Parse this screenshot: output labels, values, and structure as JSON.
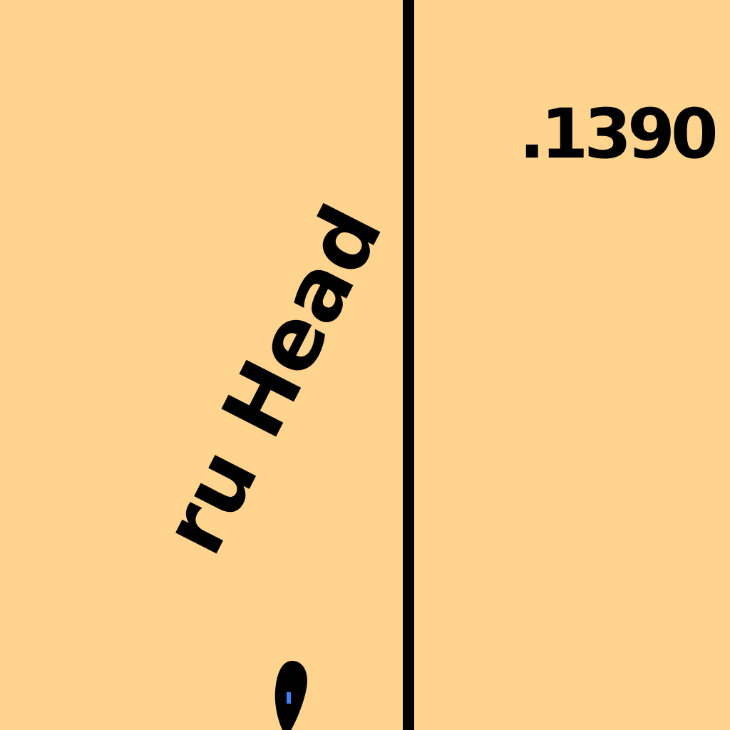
{
  "map": {
    "background_color": "#FFD48E",
    "line_color": "#000000",
    "parcel_number": ".1390",
    "street_label": "ru Head",
    "marker_icon": "location-pin-icon"
  }
}
